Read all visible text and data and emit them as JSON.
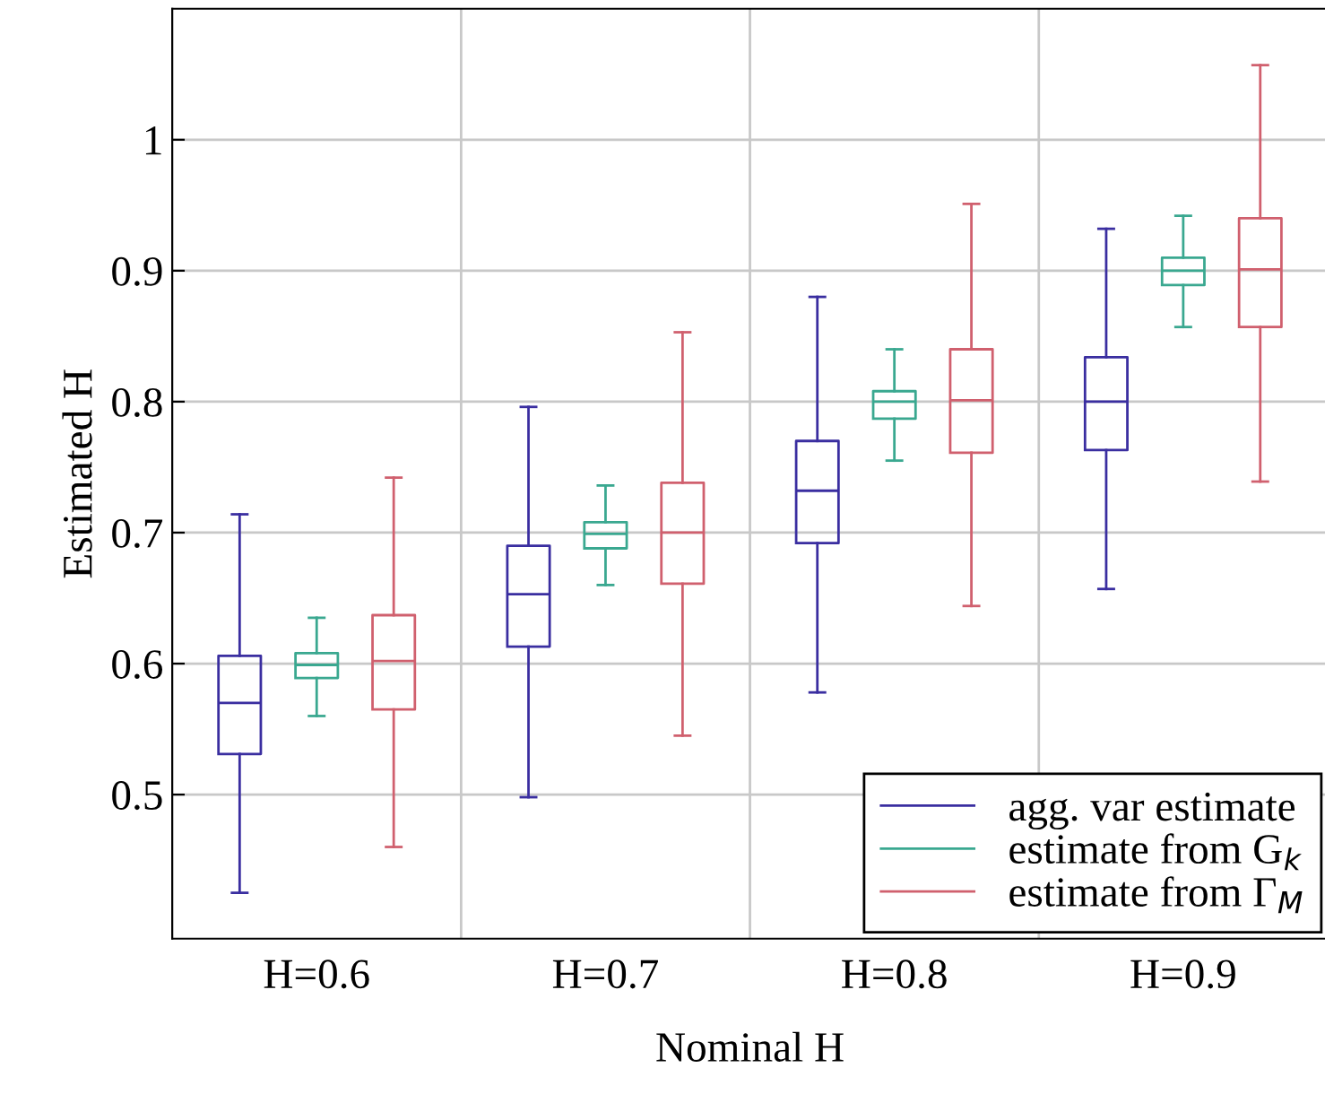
{
  "chart_data": {
    "type": "box",
    "xlabel": "Nominal H",
    "ylabel": "Estimated H",
    "categories": [
      "H=0.6",
      "H=0.7",
      "H=0.8",
      "H=0.9"
    ],
    "series": [
      {
        "name": "agg. var estimate",
        "color": "#3a2ea0",
        "boxes": [
          {
            "low": 0.425,
            "q1": 0.531,
            "median": 0.57,
            "q3": 0.606,
            "high": 0.714
          },
          {
            "low": 0.498,
            "q1": 0.613,
            "median": 0.653,
            "q3": 0.69,
            "high": 0.796
          },
          {
            "low": 0.578,
            "q1": 0.692,
            "median": 0.732,
            "q3": 0.77,
            "high": 0.88
          },
          {
            "low": 0.657,
            "q1": 0.763,
            "median": 0.8,
            "q3": 0.834,
            "high": 0.932
          }
        ]
      },
      {
        "name": "estimate from G$_{k}$",
        "color": "#3aa890",
        "boxes": [
          {
            "low": 0.56,
            "q1": 0.589,
            "median": 0.599,
            "q3": 0.608,
            "high": 0.635
          },
          {
            "low": 0.66,
            "q1": 0.688,
            "median": 0.699,
            "q3": 0.708,
            "high": 0.736
          },
          {
            "low": 0.755,
            "q1": 0.787,
            "median": 0.8,
            "q3": 0.808,
            "high": 0.84
          },
          {
            "low": 0.857,
            "q1": 0.889,
            "median": 0.9,
            "q3": 0.91,
            "high": 0.942
          }
        ]
      },
      {
        "name": "estimate from Γ$_{M}$",
        "color": "#d0606e",
        "boxes": [
          {
            "low": 0.46,
            "q1": 0.565,
            "median": 0.602,
            "q3": 0.637,
            "high": 0.742
          },
          {
            "low": 0.545,
            "q1": 0.661,
            "median": 0.7,
            "q3": 0.738,
            "high": 0.853
          },
          {
            "low": 0.644,
            "q1": 0.761,
            "median": 0.801,
            "q3": 0.84,
            "high": 0.951
          },
          {
            "low": 0.739,
            "q1": 0.857,
            "median": 0.901,
            "q3": 0.94,
            "high": 1.057
          }
        ]
      }
    ],
    "ylim": [
      0.39,
      1.1
    ],
    "yticks": [
      0.5,
      0.6,
      0.7,
      0.8,
      0.9,
      1
    ],
    "grid": true,
    "legend": "bottom right"
  }
}
